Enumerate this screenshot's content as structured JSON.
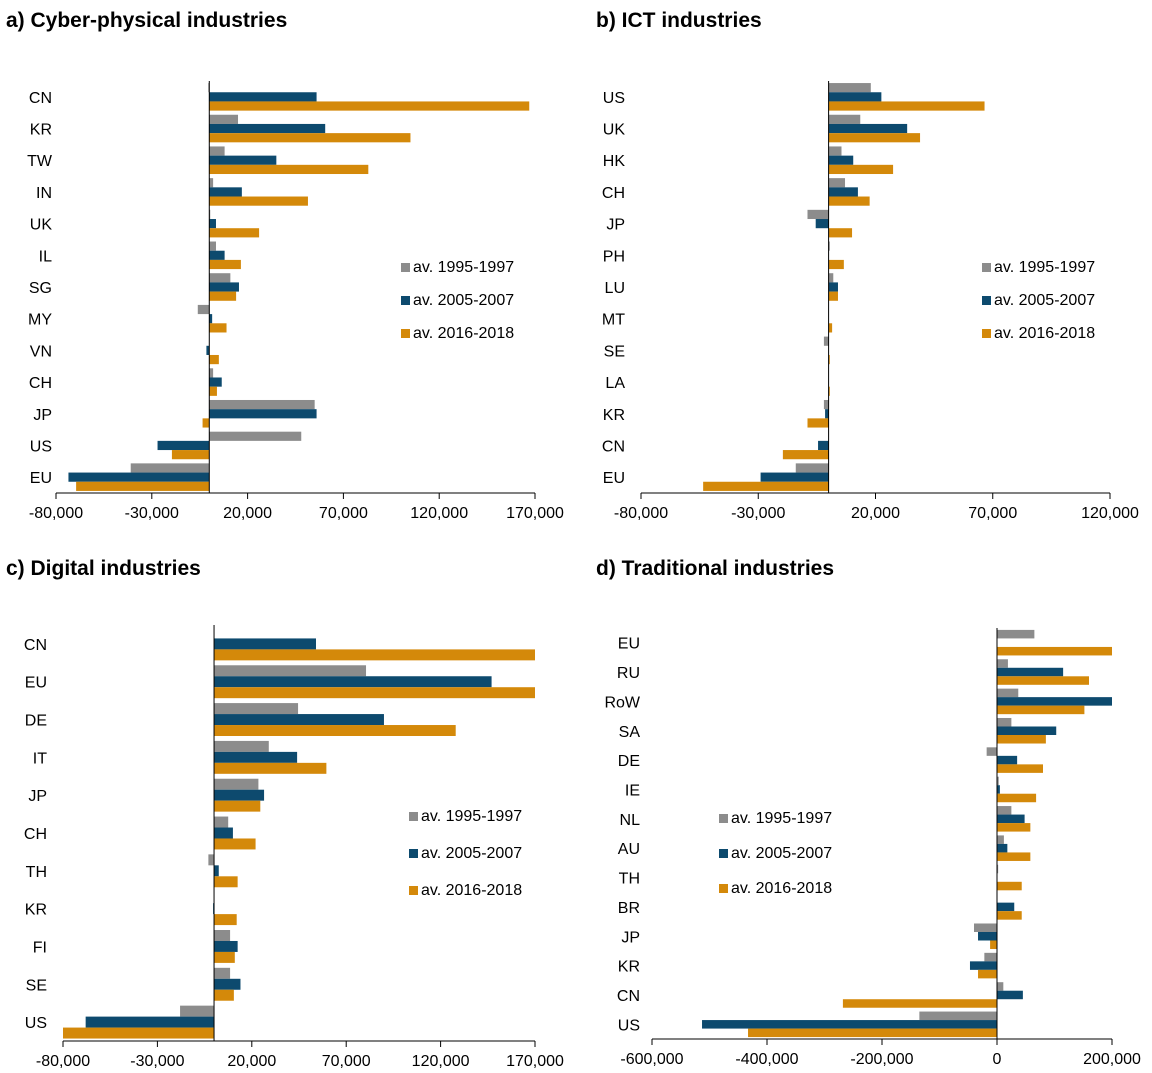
{
  "colors": {
    "s1995": "#8c8c8c",
    "s2005": "#0d4a6e",
    "s2016": "#d4890a",
    "axis": "#000000"
  },
  "chart_data": [
    {
      "type": "bar",
      "orientation": "horizontal",
      "title": "a) Cyber-physical industries",
      "categories": [
        "CN",
        "KR",
        "TW",
        "IN",
        "UK",
        "IL",
        "SG",
        "MY",
        "VN",
        "CH",
        "JP",
        "US",
        "EU"
      ],
      "series": [
        {
          "name": "av. 1995-1997",
          "values": [
            -500,
            15000,
            8000,
            2000,
            500,
            3500,
            11000,
            -6000,
            0,
            2000,
            55000,
            48000,
            -41000
          ]
        },
        {
          "name": "av. 2005-2007",
          "values": [
            56000,
            60500,
            35000,
            17000,
            3500,
            8000,
            15500,
            1500,
            -1500,
            6500,
            56000,
            -27000,
            -73500
          ]
        },
        {
          "name": "av. 2016-2018",
          "values": [
            167000,
            105000,
            83000,
            51500,
            26000,
            16500,
            14000,
            9000,
            5000,
            4000,
            -3500,
            -19500,
            -69500
          ]
        }
      ],
      "xlim": [
        -80000,
        170000
      ],
      "xticks": [
        -80000,
        -30000,
        20000,
        70000,
        120000,
        170000
      ],
      "xtick_labels": [
        "-80,000",
        "-30,000",
        "20,000",
        "70,000",
        "120,000",
        "170,000"
      ],
      "legend_position": "right"
    },
    {
      "type": "bar",
      "orientation": "horizontal",
      "title": "b) ICT industries",
      "categories": [
        "US",
        "UK",
        "HK",
        "CH",
        "JP",
        "PH",
        "LU",
        "MT",
        "SE",
        "LA",
        "KR",
        "CN",
        "EU"
      ],
      "series": [
        {
          "name": "av. 1995-1997",
          "values": [
            18000,
            13500,
            5500,
            7000,
            -9000,
            500,
            2000,
            0,
            -2000,
            0,
            -2000,
            0,
            -14000
          ]
        },
        {
          "name": "av. 2005-2007",
          "values": [
            22500,
            33500,
            10500,
            12500,
            -5500,
            0,
            4000,
            0,
            0,
            0,
            -1500,
            -4500,
            -29000
          ]
        },
        {
          "name": "av. 2016-2018",
          "values": [
            66500,
            39000,
            27500,
            17500,
            10000,
            6500,
            4000,
            1500,
            500,
            500,
            -9000,
            -19500,
            -53500
          ]
        }
      ],
      "xlim": [
        -80000,
        120000
      ],
      "xticks": [
        -80000,
        -30000,
        20000,
        70000,
        120000
      ],
      "xtick_labels": [
        "-80,000",
        "-30,000",
        "20,000",
        "70,000",
        "120,000"
      ],
      "legend_position": "right"
    },
    {
      "type": "bar",
      "orientation": "horizontal",
      "title": "c) Digital industries",
      "categories": [
        "CN",
        "EU",
        "DE",
        "IT",
        "JP",
        "CH",
        "TH",
        "KR",
        "FI",
        "SE",
        "US"
      ],
      "series": [
        {
          "name": "av. 1995-1997",
          "values": [
            0,
            80500,
            44500,
            29000,
            23500,
            7500,
            -3000,
            0,
            8500,
            8500,
            -18000
          ]
        },
        {
          "name": "av. 2005-2007",
          "values": [
            54000,
            147000,
            90000,
            44000,
            26500,
            10000,
            2500,
            -500,
            12500,
            14000,
            -68000
          ]
        },
        {
          "name": "av. 2016-2018",
          "values": [
            170000,
            170000,
            128000,
            59500,
            24500,
            22000,
            12500,
            12000,
            11000,
            10500,
            -80000
          ]
        }
      ],
      "xlim": [
        -80000,
        170000
      ],
      "xticks": [
        -80000,
        -30000,
        20000,
        70000,
        120000,
        170000
      ],
      "xtick_labels": [
        "-80,000",
        "-30,000",
        "20,000",
        "70,000",
        "120,000",
        "170,000"
      ],
      "legend_position": "right"
    },
    {
      "type": "bar",
      "orientation": "horizontal",
      "title": "d) Traditional industries",
      "categories": [
        "EU",
        "RU",
        "RoW",
        "SA",
        "DE",
        "IE",
        "NL",
        "AU",
        "TH",
        "BR",
        "JP",
        "KR",
        "CN",
        "US"
      ],
      "series": [
        {
          "name": "av. 1995-1997",
          "values": [
            65000,
            19000,
            37000,
            25000,
            -18000,
            3000,
            25000,
            12000,
            2000,
            0,
            -40000,
            -22000,
            11000,
            -135000
          ]
        },
        {
          "name": "av. 2005-2007",
          "values": [
            0,
            115000,
            200000,
            103000,
            35000,
            5000,
            48000,
            18000,
            0,
            30000,
            -33000,
            -47000,
            45000,
            -513000
          ]
        },
        {
          "name": "av. 2016-2018",
          "values": [
            200000,
            160000,
            152000,
            85000,
            80000,
            68000,
            58000,
            58000,
            43000,
            43000,
            -12000,
            -33000,
            -268000,
            -433000
          ]
        }
      ],
      "xlim": [
        -600000,
        200000
      ],
      "xticks": [
        -600000,
        -400000,
        -200000,
        0,
        200000
      ],
      "xtick_labels": [
        "-600,000",
        "-400,000",
        "-200,000",
        "0",
        "200,000"
      ],
      "legend_position": "left-center"
    }
  ]
}
